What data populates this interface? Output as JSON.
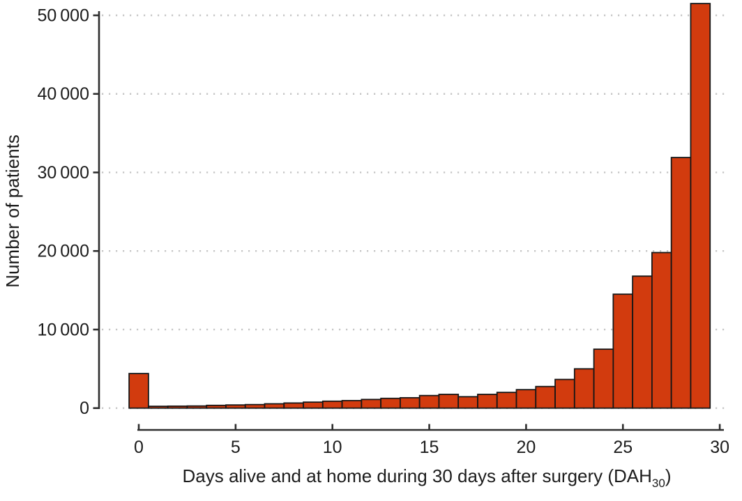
{
  "figure": {
    "background": "#ffffff"
  },
  "chart_data": {
    "type": "bar",
    "title": "",
    "ylabel": "Number of patients",
    "xlabel_parts": {
      "main": "Days alive and at home during 30 days after surgery (DAH",
      "subscript": "30",
      "suffix": ")"
    },
    "x": [
      0,
      1,
      2,
      3,
      4,
      5,
      6,
      7,
      8,
      9,
      10,
      11,
      12,
      13,
      14,
      15,
      16,
      17,
      18,
      19,
      20,
      21,
      22,
      23,
      24,
      25,
      26,
      27,
      28,
      29
    ],
    "values": [
      4400,
      230,
      250,
      270,
      350,
      400,
      450,
      550,
      650,
      760,
      880,
      960,
      1100,
      1240,
      1320,
      1600,
      1750,
      1450,
      1750,
      2000,
      2350,
      2750,
      3650,
      5000,
      7500,
      14500,
      16800,
      19800,
      31900,
      51500
    ],
    "bin_width": 1,
    "xlim": [
      -0.5,
      30
    ],
    "ylim": [
      0,
      50000
    ],
    "x_ticks": [
      {
        "value": 0,
        "label": "0"
      },
      {
        "value": 5,
        "label": "5"
      },
      {
        "value": 10,
        "label": "10"
      },
      {
        "value": 15,
        "label": "15"
      },
      {
        "value": 20,
        "label": "20"
      },
      {
        "value": 25,
        "label": "25"
      },
      {
        "value": 30,
        "label": "30"
      }
    ],
    "y_ticks": [
      {
        "value": 0,
        "label": "0"
      },
      {
        "value": 10000,
        "label": "10 000"
      },
      {
        "value": 20000,
        "label": "20 000"
      },
      {
        "value": 30000,
        "label": "30 000"
      },
      {
        "value": 40000,
        "label": "40 000"
      },
      {
        "value": 50000,
        "label": "50 000"
      }
    ],
    "grid": {
      "horizontal": "dotted",
      "vertical": "none"
    },
    "legend": "none",
    "colors": {
      "bar_fill": "#d23b0e",
      "bar_stroke": "#161616",
      "axis": "#2e2e2e",
      "grid_dots": "#c5c5c5",
      "text": "#1c1c1c"
    }
  }
}
